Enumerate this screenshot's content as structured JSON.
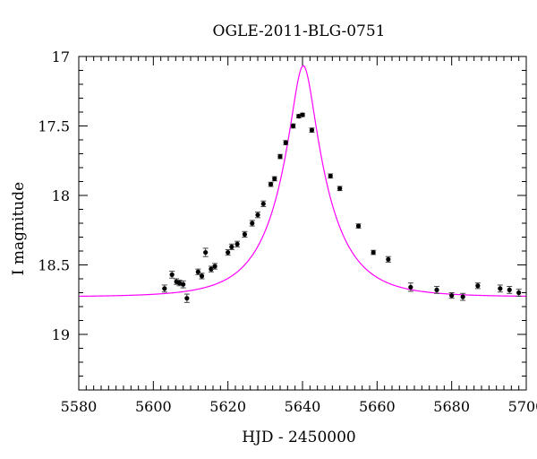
{
  "chart_data": {
    "type": "scatter",
    "title": "OGLE-2011-BLG-0751",
    "xlabel": "HJD - 2450000",
    "ylabel": "I magnitude",
    "xlim": [
      5580,
      5700
    ],
    "ylim": [
      19.4,
      17.0
    ],
    "y_inverted": true,
    "x_ticks": [
      5580,
      5600,
      5620,
      5640,
      5660,
      5680,
      5700
    ],
    "y_ticks": [
      17,
      17.5,
      18,
      18.5,
      19
    ],
    "grid": false,
    "colors": {
      "points": "#000000",
      "model": "#ff00ff",
      "axes": "#000000"
    },
    "series": [
      {
        "kind": "observed",
        "x": [
          5603.0,
          5605.0,
          5606.2,
          5607.0,
          5608.0,
          5609.0,
          5612.0,
          5613.0,
          5614.0,
          5615.5,
          5616.5,
          5620.0,
          5621.0,
          5622.5,
          5624.5,
          5626.5,
          5628.0,
          5629.5,
          5631.5,
          5632.5,
          5634.0,
          5635.5,
          5637.5,
          5639.0,
          5640.0,
          5642.5,
          5647.5,
          5650.0,
          5655.0,
          5659.0,
          5663.0,
          5669.0,
          5676.0,
          5680.0,
          5683.0,
          5687.0,
          5693.0,
          5695.5,
          5698.0
        ],
        "y": [
          18.67,
          18.57,
          18.62,
          18.63,
          18.64,
          18.74,
          18.55,
          18.58,
          18.41,
          18.53,
          18.51,
          18.41,
          18.37,
          18.35,
          18.28,
          18.2,
          18.14,
          18.06,
          17.92,
          17.88,
          17.72,
          17.62,
          17.5,
          17.43,
          17.42,
          17.53,
          17.86,
          17.95,
          18.22,
          18.41,
          18.46,
          18.66,
          18.68,
          18.72,
          18.73,
          18.65,
          18.67,
          18.68,
          18.7
        ],
        "yerr": [
          0.025,
          0.025,
          0.02,
          0.02,
          0.025,
          0.03,
          0.02,
          0.02,
          0.03,
          0.02,
          0.02,
          0.02,
          0.02,
          0.02,
          0.02,
          0.02,
          0.02,
          0.02,
          0.015,
          0.015,
          0.015,
          0.015,
          0.015,
          0.012,
          0.012,
          0.015,
          0.015,
          0.015,
          0.015,
          0.015,
          0.02,
          0.03,
          0.025,
          0.02,
          0.025,
          0.02,
          0.025,
          0.025,
          0.025
        ]
      },
      {
        "kind": "model",
        "t0": 5640.2,
        "u0": 0.22,
        "tE": 13.5,
        "baseline_mag": 18.73
      }
    ]
  }
}
